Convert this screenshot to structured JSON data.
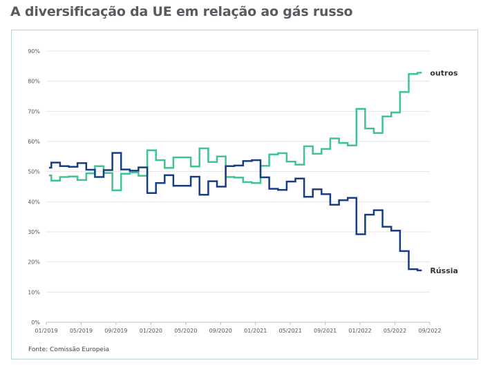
{
  "title": "A diversificação da UE em relação ao gás russo",
  "source": "Fonte: Comissão Europeia",
  "chart_data": {
    "type": "line",
    "step": true,
    "ylim": [
      0,
      90
    ],
    "yticks": [
      "0%",
      "10%",
      "20%",
      "30%",
      "40%",
      "50%",
      "60%",
      "70%",
      "80%",
      "90%"
    ],
    "xticks": [
      "01/2019",
      "05/2019",
      "09/2019",
      "01/2020",
      "05/2020",
      "09/2020",
      "01/2021",
      "05/2021",
      "09/2021",
      "01/2022",
      "05/2022",
      "09/2022"
    ],
    "grid": true,
    "months": [
      "01/2019",
      "02/2019",
      "03/2019",
      "04/2019",
      "05/2019",
      "06/2019",
      "07/2019",
      "08/2019",
      "09/2019",
      "10/2019",
      "11/2019",
      "12/2019",
      "01/2020",
      "02/2020",
      "03/2020",
      "04/2020",
      "05/2020",
      "06/2020",
      "07/2020",
      "08/2020",
      "09/2020",
      "10/2020",
      "11/2020",
      "12/2020",
      "01/2021",
      "02/2021",
      "03/2021",
      "04/2021",
      "05/2021",
      "06/2021",
      "07/2021",
      "08/2021",
      "09/2021",
      "10/2021",
      "11/2021",
      "12/2021",
      "01/2022",
      "02/2022",
      "03/2022",
      "04/2022",
      "05/2022",
      "06/2022",
      "07/2022",
      "08/2022"
    ],
    "series": [
      {
        "name": "outros",
        "color": "#3ec490",
        "values": [
          48.7,
          47.0,
          48.2,
          48.4,
          47.2,
          49.4,
          51.8,
          49.5,
          43.8,
          49.3,
          49.7,
          48.6,
          57.1,
          53.8,
          51.2,
          54.7,
          54.7,
          51.7,
          57.7,
          53.2,
          55.0,
          48.2,
          48.0,
          46.5,
          46.2,
          51.9,
          55.7,
          56.1,
          53.3,
          52.3,
          58.4,
          55.9,
          57.5,
          61.0,
          59.5,
          58.7,
          70.8,
          64.3,
          62.8,
          68.3,
          69.6,
          76.4,
          82.4,
          82.8
        ]
      },
      {
        "name": "Rússia",
        "color": "#163b87",
        "values": [
          51.3,
          53.0,
          51.8,
          51.6,
          52.8,
          50.6,
          48.2,
          50.5,
          56.2,
          50.7,
          50.3,
          51.4,
          42.9,
          46.2,
          48.8,
          45.3,
          45.3,
          48.3,
          42.3,
          46.8,
          45.0,
          51.8,
          52.0,
          53.5,
          53.8,
          48.1,
          44.3,
          43.9,
          46.7,
          47.7,
          41.6,
          44.1,
          42.5,
          39.0,
          40.5,
          41.3,
          29.2,
          35.7,
          37.2,
          31.7,
          30.4,
          23.6,
          17.6,
          17.2
        ]
      }
    ]
  }
}
